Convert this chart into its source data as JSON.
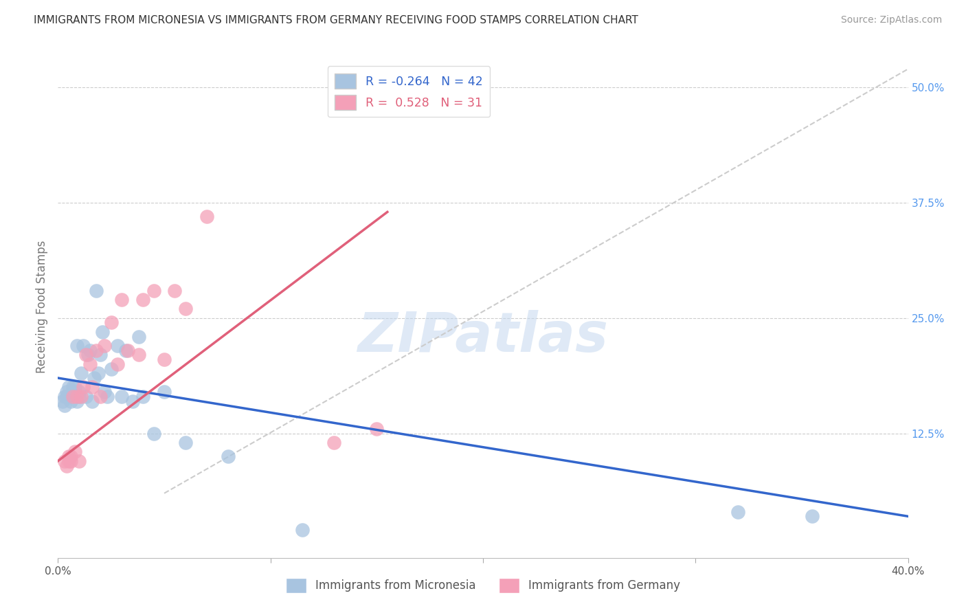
{
  "title": "IMMIGRANTS FROM MICRONESIA VS IMMIGRANTS FROM GERMANY RECEIVING FOOD STAMPS CORRELATION CHART",
  "source": "Source: ZipAtlas.com",
  "ylabel": "Receiving Food Stamps",
  "yticks": [
    "12.5%",
    "25.0%",
    "37.5%",
    "50.0%"
  ],
  "ytick_vals": [
    0.125,
    0.25,
    0.375,
    0.5
  ],
  "xlim": [
    0.0,
    0.4
  ],
  "ylim": [
    -0.01,
    0.535
  ],
  "series1_name": "Immigrants from Micronesia",
  "series1_R": -0.264,
  "series1_N": 42,
  "series1_color": "#a8c4e0",
  "series1_line_color": "#3366cc",
  "series2_name": "Immigrants from Germany",
  "series2_R": 0.528,
  "series2_N": 31,
  "series2_color": "#f4a0b8",
  "series2_line_color": "#e0607a",
  "micronesia_x": [
    0.002,
    0.003,
    0.003,
    0.004,
    0.004,
    0.005,
    0.005,
    0.006,
    0.007,
    0.007,
    0.008,
    0.009,
    0.009,
    0.01,
    0.01,
    0.011,
    0.012,
    0.013,
    0.014,
    0.015,
    0.016,
    0.017,
    0.018,
    0.019,
    0.02,
    0.021,
    0.022,
    0.023,
    0.025,
    0.028,
    0.03,
    0.032,
    0.035,
    0.038,
    0.04,
    0.045,
    0.05,
    0.06,
    0.08,
    0.115,
    0.32,
    0.355
  ],
  "micronesia_y": [
    0.16,
    0.165,
    0.155,
    0.17,
    0.165,
    0.175,
    0.165,
    0.16,
    0.175,
    0.17,
    0.175,
    0.22,
    0.16,
    0.17,
    0.165,
    0.19,
    0.22,
    0.165,
    0.21,
    0.215,
    0.16,
    0.185,
    0.28,
    0.19,
    0.21,
    0.235,
    0.17,
    0.165,
    0.195,
    0.22,
    0.165,
    0.215,
    0.16,
    0.23,
    0.165,
    0.125,
    0.17,
    0.115,
    0.1,
    0.02,
    0.04,
    0.035
  ],
  "germany_x": [
    0.003,
    0.004,
    0.005,
    0.005,
    0.006,
    0.006,
    0.007,
    0.008,
    0.009,
    0.01,
    0.011,
    0.012,
    0.013,
    0.015,
    0.016,
    0.018,
    0.02,
    0.022,
    0.025,
    0.028,
    0.03,
    0.033,
    0.038,
    0.04,
    0.045,
    0.05,
    0.055,
    0.06,
    0.07,
    0.13,
    0.15
  ],
  "germany_y": [
    0.095,
    0.09,
    0.1,
    0.095,
    0.1,
    0.095,
    0.165,
    0.105,
    0.165,
    0.095,
    0.165,
    0.175,
    0.21,
    0.2,
    0.175,
    0.215,
    0.165,
    0.22,
    0.245,
    0.2,
    0.27,
    0.215,
    0.21,
    0.27,
    0.28,
    0.205,
    0.28,
    0.26,
    0.36,
    0.115,
    0.13
  ],
  "blue_line_x": [
    0.0,
    0.4
  ],
  "blue_line_y": [
    0.185,
    0.035
  ],
  "pink_line_x": [
    0.0,
    0.155
  ],
  "pink_line_y": [
    0.095,
    0.365
  ],
  "dash_line_x": [
    0.05,
    0.4
  ],
  "dash_line_y": [
    0.06,
    0.52
  ],
  "watermark_text": "ZIPatlas",
  "background_color": "#ffffff",
  "grid_color": "#cccccc",
  "title_color": "#333333",
  "axis_label_color": "#777777",
  "right_tick_color": "#5599ee"
}
